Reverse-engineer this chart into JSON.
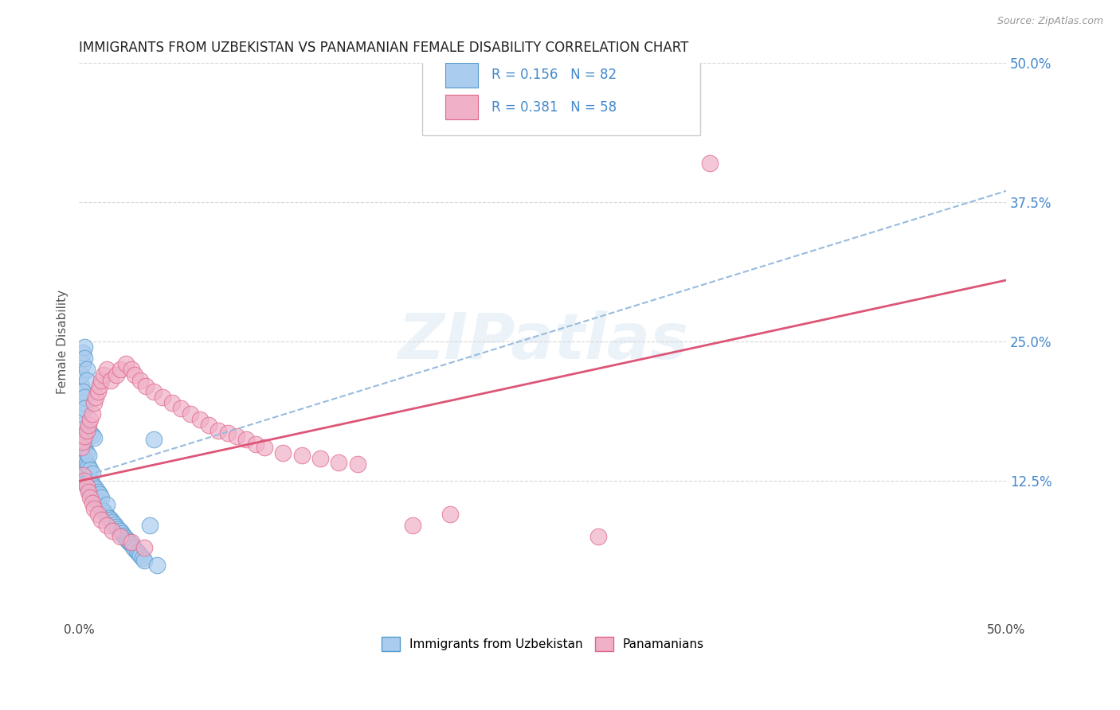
{
  "title": "IMMIGRANTS FROM UZBEKISTAN VS PANAMANIAN FEMALE DISABILITY CORRELATION CHART",
  "source": "Source: ZipAtlas.com",
  "ylabel": "Female Disability",
  "xlim": [
    0.0,
    0.5
  ],
  "ylim": [
    0.0,
    0.5
  ],
  "legend_r1": "R = 0.156",
  "legend_n1": "N = 82",
  "legend_r2": "R = 0.381",
  "legend_n2": "N = 58",
  "color_blue": "#aaccee",
  "color_pink": "#f0b0c8",
  "color_blue_dark": "#5599cc",
  "color_pink_dark": "#dd6688",
  "color_trend_blue": "#99bbdd",
  "color_trend_pink": "#dd5577",
  "watermark": "ZIPatlas",
  "trend_blue_x0": 0.0,
  "trend_blue_y0": 0.128,
  "trend_blue_x1": 0.5,
  "trend_blue_y1": 0.385,
  "trend_pink_x0": 0.0,
  "trend_pink_y0": 0.125,
  "trend_pink_x1": 0.5,
  "trend_pink_y1": 0.305,
  "scatter_blue_x": [
    0.001,
    0.001,
    0.001,
    0.001,
    0.002,
    0.002,
    0.002,
    0.002,
    0.003,
    0.003,
    0.003,
    0.003,
    0.003,
    0.004,
    0.004,
    0.004,
    0.004,
    0.005,
    0.005,
    0.005,
    0.005,
    0.006,
    0.006,
    0.006,
    0.007,
    0.007,
    0.007,
    0.008,
    0.008,
    0.009,
    0.009,
    0.01,
    0.01,
    0.011,
    0.011,
    0.012,
    0.012,
    0.013,
    0.014,
    0.015,
    0.015,
    0.016,
    0.017,
    0.018,
    0.019,
    0.02,
    0.021,
    0.022,
    0.023,
    0.024,
    0.025,
    0.026,
    0.027,
    0.028,
    0.029,
    0.03,
    0.031,
    0.032,
    0.033,
    0.034,
    0.035,
    0.001,
    0.001,
    0.002,
    0.002,
    0.003,
    0.003,
    0.004,
    0.004,
    0.001,
    0.001,
    0.002,
    0.002,
    0.003,
    0.003,
    0.005,
    0.006,
    0.007,
    0.008,
    0.04,
    0.038,
    0.042
  ],
  "scatter_blue_y": [
    0.135,
    0.145,
    0.155,
    0.165,
    0.13,
    0.14,
    0.15,
    0.16,
    0.125,
    0.135,
    0.145,
    0.155,
    0.165,
    0.12,
    0.13,
    0.14,
    0.15,
    0.118,
    0.128,
    0.138,
    0.148,
    0.115,
    0.125,
    0.135,
    0.112,
    0.122,
    0.132,
    0.11,
    0.12,
    0.108,
    0.118,
    0.105,
    0.115,
    0.103,
    0.113,
    0.1,
    0.11,
    0.098,
    0.096,
    0.094,
    0.104,
    0.092,
    0.09,
    0.088,
    0.086,
    0.084,
    0.082,
    0.08,
    0.078,
    0.076,
    0.074,
    0.072,
    0.07,
    0.068,
    0.066,
    0.064,
    0.062,
    0.06,
    0.058,
    0.056,
    0.054,
    0.21,
    0.22,
    0.23,
    0.24,
    0.245,
    0.235,
    0.225,
    0.215,
    0.175,
    0.185,
    0.195,
    0.205,
    0.2,
    0.19,
    0.17,
    0.168,
    0.166,
    0.164,
    0.162,
    0.085,
    0.05
  ],
  "scatter_pink_x": [
    0.001,
    0.002,
    0.003,
    0.004,
    0.005,
    0.006,
    0.007,
    0.008,
    0.009,
    0.01,
    0.011,
    0.012,
    0.013,
    0.015,
    0.017,
    0.02,
    0.022,
    0.025,
    0.028,
    0.03,
    0.033,
    0.036,
    0.04,
    0.045,
    0.05,
    0.055,
    0.06,
    0.065,
    0.07,
    0.075,
    0.08,
    0.085,
    0.09,
    0.095,
    0.1,
    0.11,
    0.12,
    0.13,
    0.14,
    0.15,
    0.002,
    0.003,
    0.004,
    0.005,
    0.006,
    0.007,
    0.008,
    0.01,
    0.012,
    0.015,
    0.018,
    0.022,
    0.028,
    0.035,
    0.28,
    0.34,
    0.2,
    0.18
  ],
  "scatter_pink_y": [
    0.155,
    0.16,
    0.165,
    0.17,
    0.175,
    0.18,
    0.185,
    0.195,
    0.2,
    0.205,
    0.21,
    0.215,
    0.22,
    0.225,
    0.215,
    0.22,
    0.225,
    0.23,
    0.225,
    0.22,
    0.215,
    0.21,
    0.205,
    0.2,
    0.195,
    0.19,
    0.185,
    0.18,
    0.175,
    0.17,
    0.168,
    0.165,
    0.162,
    0.158,
    0.155,
    0.15,
    0.148,
    0.145,
    0.142,
    0.14,
    0.13,
    0.125,
    0.12,
    0.115,
    0.11,
    0.105,
    0.1,
    0.095,
    0.09,
    0.085,
    0.08,
    0.075,
    0.07,
    0.065,
    0.075,
    0.41,
    0.095,
    0.085
  ]
}
